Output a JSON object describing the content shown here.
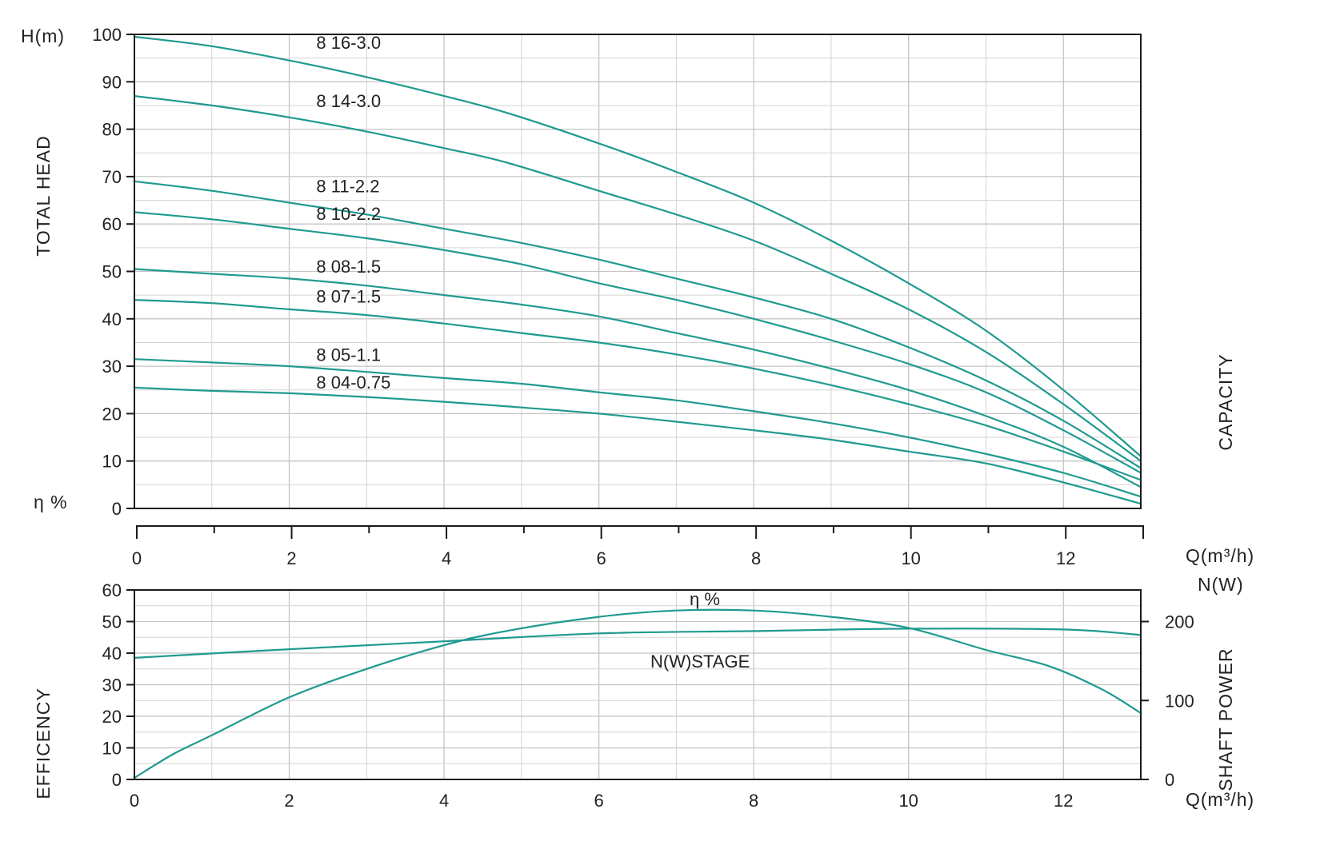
{
  "colors": {
    "curve": "#1f9a8f",
    "axis": "#1a1a1a",
    "grid": "#c8c8c8",
    "background": "#ffffff"
  },
  "labels": {
    "head_unit": "H(m)",
    "eta_unit": "η %",
    "total_head": "TOTAL HEAD",
    "capacity": "CAPACITY",
    "flow_unit_mid": "Q(m³/h)",
    "power_unit": "N(W)",
    "efficiency": "EFFICENCY",
    "shaft_power": "SHAFT POWER",
    "flow_unit_bottom": "Q(m³/h)",
    "eta_curve": "η %",
    "power_curve": "N(W)STAGE"
  },
  "chart_data": [
    {
      "type": "line",
      "title": "",
      "xlabel": "Q(m³/h)",
      "ylabel": "TOTAL HEAD",
      "y_unit": "H(m)",
      "right_label": "CAPACITY",
      "xlim": [
        0,
        13
      ],
      "ylim": [
        0,
        100
      ],
      "x_ticks": [
        0,
        2,
        4,
        6,
        8,
        10,
        12
      ],
      "y_ticks": [
        0,
        10,
        20,
        30,
        40,
        50,
        60,
        70,
        80,
        90,
        100
      ],
      "grid": true,
      "series": [
        {
          "name": "8 16-3.0",
          "x": [
            0,
            1,
            2,
            3,
            4,
            4.8,
            6,
            7,
            8,
            9,
            10,
            11,
            12,
            13
          ],
          "y": [
            99.5,
            97.5,
            94.5,
            91,
            87,
            83.5,
            77,
            71,
            64.5,
            56.5,
            47.5,
            37.5,
            25,
            11
          ]
        },
        {
          "name": "8 14-3.0",
          "x": [
            0,
            1,
            2,
            3,
            4,
            4.8,
            6,
            7,
            8,
            9,
            10,
            11,
            12,
            13
          ],
          "y": [
            87,
            85,
            82.5,
            79.5,
            76,
            73,
            67,
            62,
            56.5,
            49.5,
            42,
            33,
            22,
            10
          ]
        },
        {
          "name": "8 11-2.2",
          "x": [
            0,
            1,
            2,
            3,
            4,
            5,
            6,
            7,
            8,
            9,
            10,
            11,
            12,
            13
          ],
          "y": [
            69,
            67,
            64.5,
            62,
            59,
            56,
            52.5,
            48.5,
            44.5,
            40,
            34,
            27,
            18.5,
            8.5
          ]
        },
        {
          "name": "8 10-2.2",
          "x": [
            0,
            1,
            2,
            3,
            4,
            5,
            6,
            7,
            8,
            9,
            10,
            11,
            12,
            13
          ],
          "y": [
            62.5,
            61,
            59,
            57,
            54.5,
            51.5,
            47.5,
            44,
            40,
            35.5,
            30.5,
            24.5,
            16.5,
            7.5
          ]
        },
        {
          "name": "8 08-1.5",
          "x": [
            0,
            1,
            2,
            3,
            4,
            5,
            6,
            7,
            8,
            9,
            10,
            11,
            12,
            13
          ],
          "y": [
            50.5,
            49.5,
            48.5,
            47,
            45,
            43,
            40.5,
            37,
            33.5,
            29.5,
            25,
            19.5,
            13,
            4.5
          ]
        },
        {
          "name": "8 07-1.5",
          "x": [
            0,
            1,
            2,
            3,
            4,
            5,
            6,
            7,
            8,
            9,
            10,
            11,
            12,
            13
          ],
          "y": [
            44,
            43.3,
            42,
            40.8,
            39,
            37,
            35,
            32.5,
            29.5,
            26,
            22,
            17.5,
            12,
            6
          ]
        },
        {
          "name": "8 05-1.1",
          "x": [
            0,
            1,
            2,
            3,
            4,
            5,
            6,
            7,
            8,
            9,
            10,
            11,
            12,
            13
          ],
          "y": [
            31.5,
            30.8,
            30,
            28.8,
            27.5,
            26.3,
            24.5,
            22.8,
            20.5,
            18,
            15,
            11.5,
            7.5,
            2.5
          ]
        },
        {
          "name": "8 04-0.75",
          "x": [
            0,
            1,
            2,
            3,
            4,
            5,
            6,
            7,
            8,
            9,
            10,
            11,
            12,
            13
          ],
          "y": [
            25.5,
            24.8,
            24.3,
            23.5,
            22.5,
            21.3,
            20,
            18.3,
            16.5,
            14.5,
            12,
            9.5,
            5.5,
            1
          ]
        }
      ],
      "annotations": [
        "η %"
      ]
    },
    {
      "type": "line",
      "title": "",
      "xlabel": "Q(m³/h)",
      "ylabel": "EFFICENCY",
      "y2label": "SHAFT POWER",
      "y2_unit": "N(W)",
      "xlim": [
        0,
        13
      ],
      "ylim": [
        0,
        60
      ],
      "y2lim": [
        0,
        240
      ],
      "x_ticks": [
        0,
        2,
        4,
        6,
        8,
        10,
        12
      ],
      "y_ticks": [
        0,
        10,
        20,
        30,
        40,
        50,
        60
      ],
      "y2_ticks": [
        0,
        100,
        200
      ],
      "grid": true,
      "series": [
        {
          "name": "η %",
          "axis": "left",
          "x": [
            0,
            0.5,
            1,
            2,
            3,
            4,
            4.8,
            6,
            7,
            8,
            9,
            10,
            11,
            11.8,
            12.5,
            13
          ],
          "y": [
            0.5,
            8,
            14,
            26,
            35,
            42.5,
            47,
            51.5,
            53.5,
            53.5,
            51.5,
            48,
            41,
            36,
            28.5,
            21
          ]
        },
        {
          "name": "N(W)STAGE",
          "axis": "right",
          "x": [
            0,
            2,
            4,
            6,
            8,
            10,
            12,
            13
          ],
          "y": [
            154,
            165,
            175,
            185,
            188,
            191,
            190,
            183
          ]
        }
      ]
    }
  ]
}
